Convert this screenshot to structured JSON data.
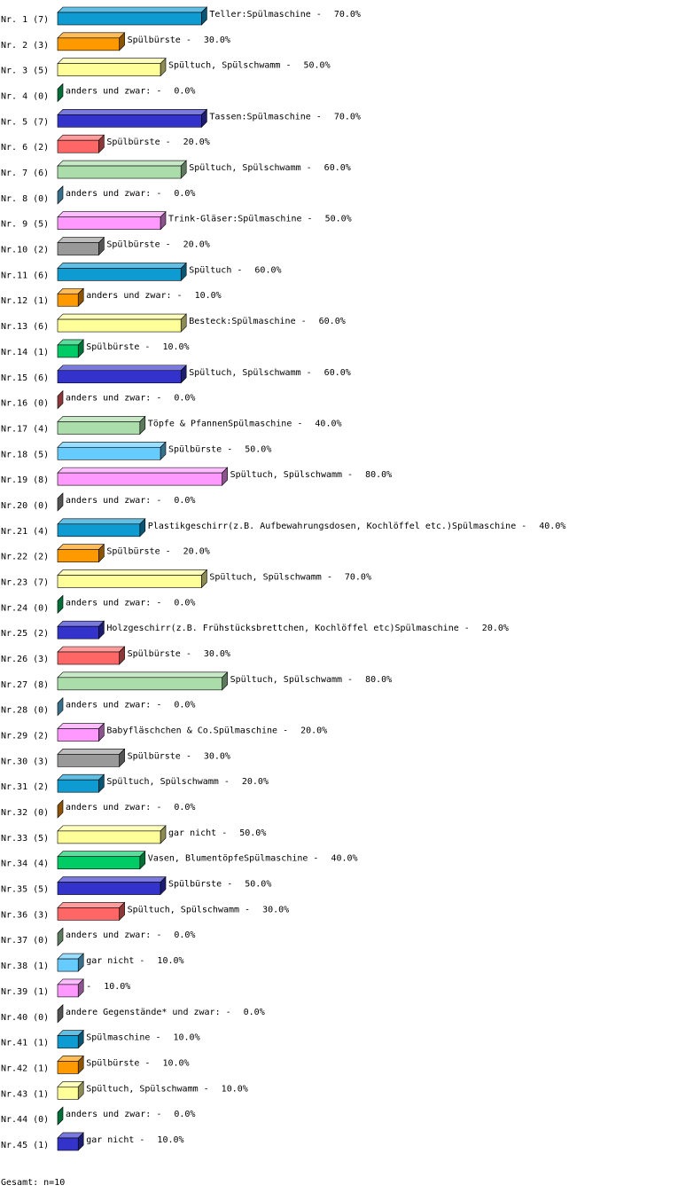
{
  "chart_data": {
    "type": "bar",
    "orientation": "horizontal",
    "categories": [
      "Nr. 1 (7)",
      "Nr. 2 (3)",
      "Nr. 3 (5)",
      "Nr. 4 (0)",
      "Nr. 5 (7)",
      "Nr. 6 (2)",
      "Nr. 7 (6)",
      "Nr. 8 (0)",
      "Nr. 9 (5)",
      "Nr.10 (2)",
      "Nr.11 (6)",
      "Nr.12 (1)",
      "Nr.13 (6)",
      "Nr.14 (1)",
      "Nr.15 (6)",
      "Nr.16 (0)",
      "Nr.17 (4)",
      "Nr.18 (5)",
      "Nr.19 (8)",
      "Nr.20 (0)",
      "Nr.21 (4)",
      "Nr.22 (2)",
      "Nr.23 (7)",
      "Nr.24 (0)",
      "Nr.25 (2)",
      "Nr.26 (3)",
      "Nr.27 (8)",
      "Nr.28 (0)",
      "Nr.29 (2)",
      "Nr.30 (3)",
      "Nr.31 (2)",
      "Nr.32 (0)",
      "Nr.33 (5)",
      "Nr.34 (4)",
      "Nr.35 (5)",
      "Nr.36 (3)",
      "Nr.37 (0)",
      "Nr.38 (1)",
      "Nr.39 (1)",
      "Nr.40 (0)",
      "Nr.41 (1)",
      "Nr.42 (1)",
      "Nr.43 (1)",
      "Nr.44 (0)",
      "Nr.45 (1)"
    ],
    "bar_labels": [
      "Teller:Spülmaschine -",
      "Spülbürste -",
      "Spültuch, Spülschwamm -",
      "anders und zwar: -",
      "Tassen:Spülmaschine -",
      "Spülbürste -",
      "Spültuch, Spülschwamm -",
      "anders und zwar: -",
      "Trink-Gläser:Spülmaschine -",
      "Spülbürste -",
      "Spültuch -",
      "anders und zwar: -",
      "Besteck:Spülmaschine -",
      "Spülbürste -",
      "Spültuch, Spülschwamm -",
      "anders und zwar: -",
      "Töpfe & PfannenSpülmaschine -",
      "Spülbürste -",
      "Spültuch, Spülschwamm -",
      "anders und zwar: -",
      "Plastikgeschirr(z.B. Aufbewahrungsdosen, Kochlöffel etc.)Spülmaschine -",
      "Spülbürste -",
      "Spültuch, Spülschwamm -",
      "anders und zwar: -",
      "Holzgeschirr(z.B. Frühstücksbrettchen, Kochlöffel etc)Spülmaschine -",
      "Spülbürste -",
      "Spültuch, Spülschwamm -",
      "anders und zwar: -",
      "Babyfläschchen & Co.Spülmaschine -",
      "Spülbürste -",
      "Spültuch, Spülschwamm -",
      "anders und zwar: -",
      "gar nicht -",
      "Vasen, BlumentöpfeSpülmaschine -",
      "Spülbürste -",
      "Spültuch, Spülschwamm -",
      "anders und zwar: -",
      "gar nicht -",
      "-",
      "andere Gegenstände* und zwar: -",
      "Spülmaschine -",
      "Spülbürste -",
      "Spültuch, Spülschwamm -",
      "anders und zwar: -",
      "gar nicht -"
    ],
    "values": [
      70,
      30,
      50,
      0,
      70,
      20,
      60,
      0,
      50,
      20,
      60,
      10,
      60,
      10,
      60,
      0,
      40,
      50,
      80,
      0,
      40,
      20,
      70,
      0,
      20,
      30,
      80,
      0,
      20,
      30,
      20,
      0,
      50,
      40,
      50,
      30,
      0,
      10,
      10,
      0,
      10,
      10,
      10,
      0,
      10
    ],
    "value_labels": [
      "70.0%",
      "30.0%",
      "50.0%",
      "0.0%",
      "70.0%",
      "20.0%",
      "60.0%",
      "0.0%",
      "50.0%",
      "20.0%",
      "60.0%",
      "10.0%",
      "60.0%",
      "10.0%",
      "60.0%",
      "0.0%",
      "40.0%",
      "50.0%",
      "80.0%",
      "0.0%",
      "40.0%",
      "20.0%",
      "70.0%",
      "0.0%",
      "20.0%",
      "30.0%",
      "80.0%",
      "0.0%",
      "20.0%",
      "30.0%",
      "20.0%",
      "0.0%",
      "50.0%",
      "40.0%",
      "50.0%",
      "30.0%",
      "0.0%",
      "10.0%",
      "10.0%",
      "0.0%",
      "10.0%",
      "10.0%",
      "10.0%",
      "0.0%",
      "10.0%"
    ],
    "colors": [
      "#0e9bd2",
      "#ff9900",
      "#ffff99",
      "#00cc66",
      "#3333cc",
      "#ff6666",
      "#aaddaa",
      "#66ccff",
      "#ff99ff",
      "#999999"
    ],
    "footer": "Gesamt: n=10"
  }
}
